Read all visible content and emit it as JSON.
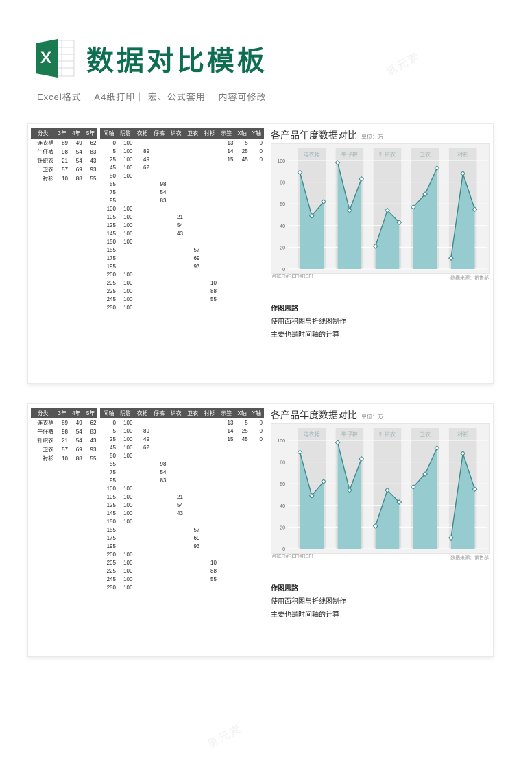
{
  "header": {
    "title": "数据对比模板",
    "title_color": "#0e6e4f",
    "title_fontsize": 40,
    "subtitle": "Excel格式｜ A4纸打印｜ 宏、公式套用｜ 内容可修改",
    "subtitle_color": "#777777",
    "excel_icon": {
      "bg": "#1a7a50",
      "text": "X",
      "sheet_bg": "#ffffff",
      "sheet_line": "#d9d9d9"
    }
  },
  "tableA": {
    "headers": [
      "分类",
      "3年",
      "4年",
      "5年"
    ],
    "rows": [
      [
        "连衣裙",
        "89",
        "49",
        "62"
      ],
      [
        "牛仔裤",
        "98",
        "54",
        "83"
      ],
      [
        "针织衣",
        "21",
        "54",
        "43"
      ],
      [
        "卫衣",
        "57",
        "69",
        "93"
      ],
      [
        "衬衫",
        "10",
        "88",
        "55"
      ]
    ],
    "header_bg": "#555555",
    "header_fg": "#ffffff",
    "cell_fg": "#222222",
    "fontsize": 8
  },
  "tableB": {
    "headers": [
      "间轴",
      "阴影",
      "衣裙",
      "仔裤",
      "织衣",
      "卫衣",
      "衬衫",
      "示签",
      "X轴",
      "Y轴"
    ],
    "rows": [
      [
        "0",
        "100",
        "",
        "",
        "",
        "",
        "",
        "13",
        "5",
        "0"
      ],
      [
        "5",
        "100",
        "89",
        "",
        "",
        "",
        "",
        "14",
        "25",
        "0"
      ],
      [
        "25",
        "100",
        "49",
        "",
        "",
        "",
        "",
        "15",
        "45",
        "0"
      ],
      [
        "45",
        "100",
        "62",
        "",
        "",
        "",
        "",
        "",
        "",
        ""
      ],
      [
        "50",
        "100",
        "",
        "",
        "",
        "",
        "",
        "",
        "",
        ""
      ],
      [
        "55",
        "",
        "",
        "98",
        "",
        "",
        "",
        "",
        "",
        ""
      ],
      [
        "75",
        "",
        "",
        "54",
        "",
        "",
        "",
        "",
        "",
        ""
      ],
      [
        "95",
        "",
        "",
        "83",
        "",
        "",
        "",
        "",
        "",
        ""
      ],
      [
        "100",
        "100",
        "",
        "",
        "",
        "",
        "",
        "",
        "",
        ""
      ],
      [
        "105",
        "100",
        "",
        "",
        "21",
        "",
        "",
        "",
        "",
        ""
      ],
      [
        "125",
        "100",
        "",
        "",
        "54",
        "",
        "",
        "",
        "",
        ""
      ],
      [
        "145",
        "100",
        "",
        "",
        "43",
        "",
        "",
        "",
        "",
        ""
      ],
      [
        "150",
        "100",
        "",
        "",
        "",
        "",
        "",
        "",
        "",
        ""
      ],
      [
        "155",
        "",
        "",
        "",
        "",
        "57",
        "",
        "",
        "",
        ""
      ],
      [
        "175",
        "",
        "",
        "",
        "",
        "69",
        "",
        "",
        "",
        ""
      ],
      [
        "195",
        "",
        "",
        "",
        "",
        "93",
        "",
        "",
        "",
        ""
      ],
      [
        "200",
        "100",
        "",
        "",
        "",
        "",
        "",
        "",
        "",
        ""
      ],
      [
        "205",
        "100",
        "",
        "",
        "",
        "",
        "10",
        "",
        "",
        ""
      ],
      [
        "225",
        "100",
        "",
        "",
        "",
        "",
        "88",
        "",
        "",
        ""
      ],
      [
        "245",
        "100",
        "",
        "",
        "",
        "",
        "55",
        "",
        "",
        ""
      ],
      [
        "250",
        "100",
        "",
        "",
        "",
        "",
        "",
        "",
        "",
        ""
      ]
    ],
    "header_bg": "#555555",
    "header_fg": "#ffffff",
    "fontsize": 8
  },
  "chart": {
    "title": "各产品年度数据对比",
    "unit_label": "单位：万",
    "type": "area-with-markers",
    "background": "#f2f2f2",
    "plot_bg": "#f2f2f2",
    "panel_bg": "#e1e1e1",
    "grid_color": "#ffffff",
    "area_fill": "#96cbcf",
    "area_stroke": "#3d8a8e",
    "marker_fill": "#ffffff",
    "marker_stroke": "#3d8a8e",
    "marker_size": 3.2,
    "x_labels": [
      "连衣裙",
      "牛仔裤",
      "针织衣",
      "卫衣",
      "衬衫"
    ],
    "y_axis": {
      "min": 0,
      "max": 100,
      "ticks": [
        0,
        20,
        40,
        60,
        80,
        100
      ],
      "fontsize": 7,
      "color": "#666666"
    },
    "xlabel_fontsize": 8,
    "xlabel_color": "#9fb5b7",
    "groups": [
      {
        "x_center": 0.12,
        "width": 0.14,
        "values": [
          89,
          49,
          62
        ]
      },
      {
        "x_center": 0.31,
        "width": 0.14,
        "values": [
          98,
          54,
          83
        ]
      },
      {
        "x_center": 0.5,
        "width": 0.14,
        "values": [
          21,
          54,
          43
        ]
      },
      {
        "x_center": 0.69,
        "width": 0.14,
        "values": [
          57,
          69,
          93
        ]
      },
      {
        "x_center": 0.88,
        "width": 0.14,
        "values": [
          10,
          88,
          55
        ]
      }
    ],
    "footer_left": "#REF!#REF!#REF!",
    "footer_right": "数据来源：销售部",
    "footer_color": "#999999"
  },
  "notes": {
    "title": "作图思路",
    "line1": "使用面积图与折线图制作",
    "line2": "主要也是时间轴的计算"
  },
  "watermark_text": "氢元素",
  "colors": {
    "page_bg": "#ffffff",
    "panel_border": "#e9e9e9"
  }
}
